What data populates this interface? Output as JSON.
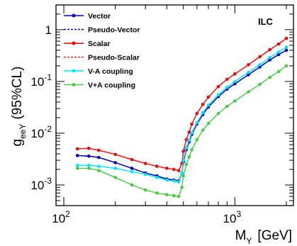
{
  "chart_data": {
    "type": "line",
    "title": "",
    "annotation": "ILC",
    "x_scale": "log",
    "y_scale": "log",
    "xlim": [
      90,
      2200
    ],
    "ylim": [
      0.0004,
      3
    ],
    "grid": false,
    "legend_position": "top-left",
    "xlabel": {
      "main": "M",
      "sub": "Y",
      "unit": "[GeV]"
    },
    "ylabel": {
      "main": "g",
      "sub": "eeY",
      "tail": "(95%CL)"
    },
    "x_ticks": [
      {
        "value": 100,
        "base": "10",
        "exp": "2"
      },
      {
        "value": 1000,
        "base": "10",
        "exp": "3"
      }
    ],
    "y_ticks": [
      {
        "value": 0.001,
        "base": "10",
        "exp": "-3"
      },
      {
        "value": 0.01,
        "base": "10",
        "exp": "-2"
      },
      {
        "value": 0.1,
        "base": "10",
        "exp": "-1"
      },
      {
        "value": 1,
        "base": "1",
        "exp": ""
      }
    ],
    "series": [
      {
        "name": "Vector",
        "color": "#0000cc",
        "dashed": false,
        "markers": true,
        "x": [
          120,
          140,
          160,
          200,
          250,
          300,
          350,
          400,
          440,
          470,
          490,
          500,
          520,
          540,
          560,
          600,
          650,
          700,
          800,
          900,
          1000,
          1200,
          1400,
          1600,
          1800,
          2000
        ],
        "y": [
          0.0037,
          0.0036,
          0.0034,
          0.0027,
          0.0021,
          0.0017,
          0.0015,
          0.0013,
          0.00125,
          0.0012,
          0.0017,
          0.0028,
          0.0048,
          0.0068,
          0.0095,
          0.015,
          0.023,
          0.032,
          0.051,
          0.071,
          0.09,
          0.135,
          0.19,
          0.26,
          0.33,
          0.4
        ]
      },
      {
        "name": "Pseudo-Vector",
        "color": "#000099",
        "dashed": true,
        "markers": false,
        "x": [
          120,
          140,
          160,
          200,
          250,
          300,
          350,
          400,
          440,
          470,
          490,
          500,
          520,
          540,
          560,
          600,
          650,
          700,
          800,
          900,
          1000,
          1200,
          1400,
          1600,
          1800,
          2000
        ],
        "y": [
          0.0037,
          0.0036,
          0.0034,
          0.0027,
          0.0021,
          0.0017,
          0.0015,
          0.0013,
          0.00125,
          0.0012,
          0.0017,
          0.0028,
          0.0048,
          0.0068,
          0.0095,
          0.015,
          0.023,
          0.032,
          0.051,
          0.071,
          0.09,
          0.135,
          0.19,
          0.26,
          0.33,
          0.4
        ]
      },
      {
        "name": "Scalar",
        "color": "#dd0000",
        "dashed": false,
        "markers": true,
        "x": [
          120,
          140,
          160,
          200,
          250,
          300,
          350,
          400,
          440,
          470,
          490,
          500,
          520,
          540,
          560,
          600,
          650,
          700,
          800,
          900,
          1000,
          1200,
          1400,
          1600,
          1800,
          2000
        ],
        "y": [
          0.005,
          0.0051,
          0.0047,
          0.0039,
          0.0031,
          0.0026,
          0.0023,
          0.0021,
          0.002,
          0.0019,
          0.0026,
          0.0045,
          0.0075,
          0.0105,
          0.015,
          0.024,
          0.036,
          0.05,
          0.08,
          0.11,
          0.14,
          0.21,
          0.3,
          0.41,
          0.53,
          0.68
        ]
      },
      {
        "name": "Pseudo-Scalar",
        "color": "#ff2222",
        "dashed": true,
        "markers": false,
        "x": [
          120,
          140,
          160,
          200,
          250,
          300,
          350,
          400,
          440,
          470,
          490,
          500,
          520,
          540,
          560,
          600,
          650,
          700,
          800,
          900,
          1000,
          1200,
          1400,
          1600,
          1800,
          2000
        ],
        "y": [
          0.005,
          0.0051,
          0.0047,
          0.0039,
          0.0031,
          0.0026,
          0.0023,
          0.0021,
          0.002,
          0.0019,
          0.0026,
          0.0045,
          0.0075,
          0.0105,
          0.015,
          0.024,
          0.036,
          0.05,
          0.08,
          0.11,
          0.14,
          0.21,
          0.3,
          0.41,
          0.53,
          0.68
        ]
      },
      {
        "name": "V-A coupling",
        "color": "#00e5ff",
        "dashed": false,
        "markers": true,
        "x": [
          120,
          140,
          160,
          200,
          250,
          300,
          350,
          400,
          440,
          470,
          490,
          500,
          520,
          540,
          560,
          600,
          650,
          700,
          800,
          900,
          1000,
          1200,
          1400,
          1600,
          1800,
          2000
        ],
        "y": [
          0.0024,
          0.0024,
          0.0023,
          0.0021,
          0.0018,
          0.0016,
          0.0014,
          0.00125,
          0.0012,
          0.00115,
          0.0017,
          0.003,
          0.0052,
          0.0073,
          0.0102,
          0.016,
          0.025,
          0.035,
          0.055,
          0.077,
          0.1,
          0.15,
          0.21,
          0.29,
          0.37,
          0.46
        ]
      },
      {
        "name": "V+A coupling",
        "color": "#44cc44",
        "dashed": false,
        "markers": true,
        "x": [
          120,
          140,
          160,
          200,
          250,
          300,
          350,
          400,
          440,
          470,
          490,
          500,
          520,
          540,
          560,
          600,
          650,
          700,
          800,
          900,
          1000,
          1200,
          1400,
          1600,
          1800,
          2000
        ],
        "y": [
          0.0021,
          0.0021,
          0.0019,
          0.0014,
          0.001,
          0.0008,
          0.0007,
          0.00065,
          0.00062,
          0.0006,
          0.0009,
          0.0015,
          0.0025,
          0.0035,
          0.0048,
          0.0075,
          0.0115,
          0.0155,
          0.024,
          0.033,
          0.042,
          0.063,
          0.088,
          0.12,
          0.155,
          0.2
        ]
      }
    ]
  }
}
